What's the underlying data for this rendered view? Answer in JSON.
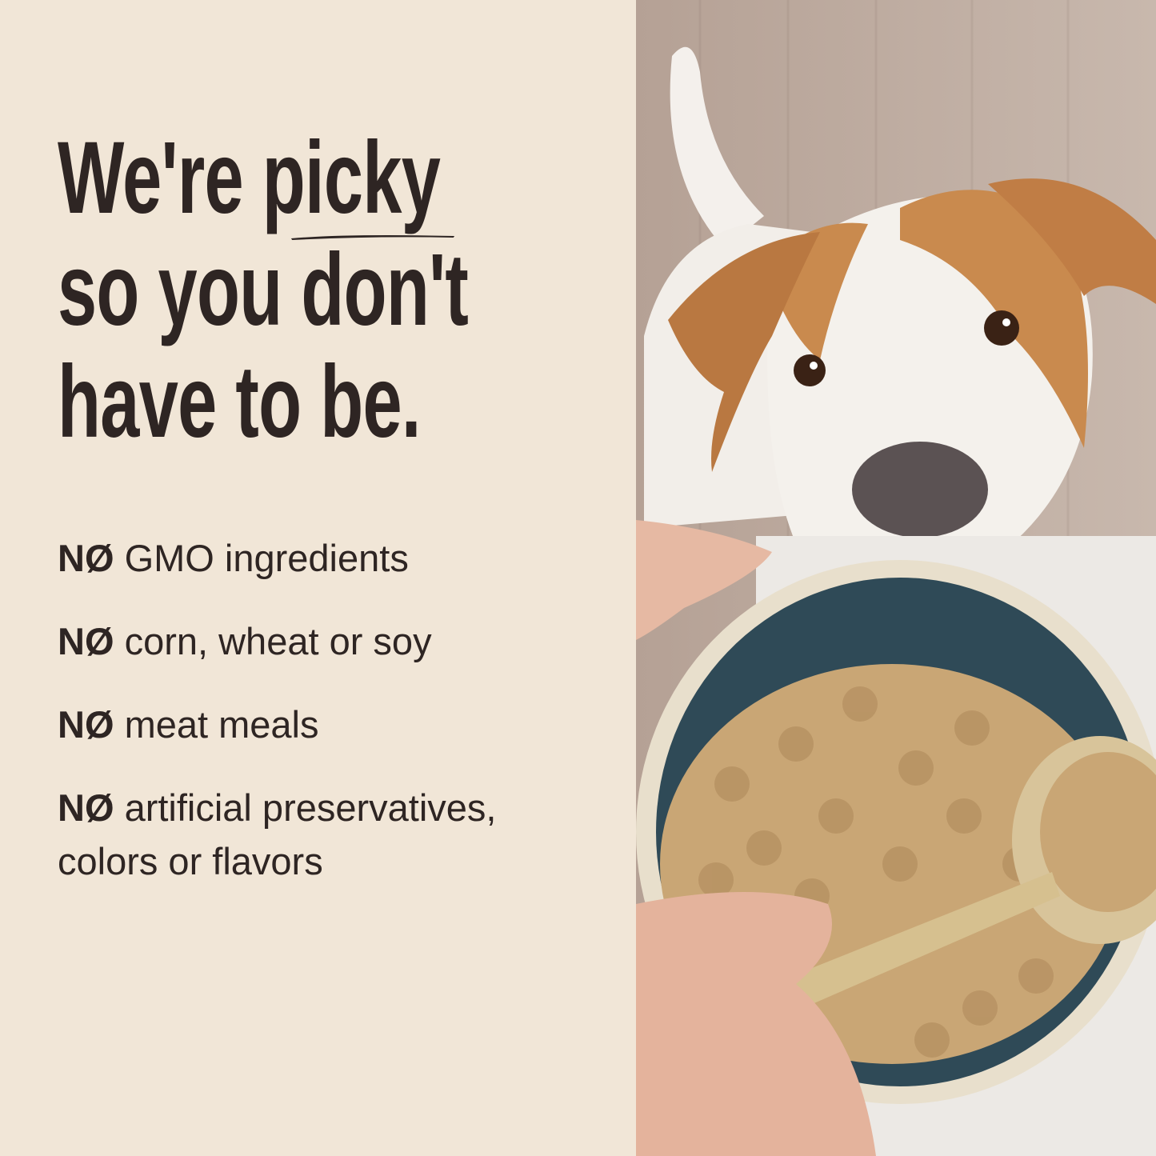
{
  "headline": {
    "line1_prefix": "We're ",
    "line1_emphasis": "picky",
    "line2": "so you don't",
    "line3": "have to be."
  },
  "claims": [
    {
      "prefix": "NØ",
      "text": "GMO ingredients"
    },
    {
      "prefix": "NØ",
      "text": "corn, wheat or soy"
    },
    {
      "prefix": "NØ",
      "text": "meat meals"
    },
    {
      "prefix": "NØ",
      "text": "artificial preservatives, colors or flavors"
    }
  ],
  "colors": {
    "background": "#f1e6d7",
    "text": "#2e2523",
    "bowl": "#2f4a57",
    "kibble": "#c9a675",
    "dog_orange": "#c98a4e"
  },
  "photo": {
    "subject": "dog-looking-at-food-bowl"
  }
}
